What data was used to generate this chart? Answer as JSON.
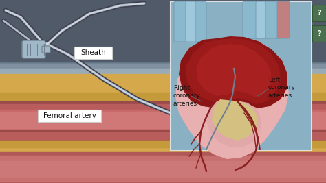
{
  "bg_gray_blue": "#6b7f8e",
  "bg_dark_blue_top": "#505d6b",
  "fat_yellow": "#d4a84b",
  "fat_yellow2": "#c49a3a",
  "artery_dark": "#9b4a4a",
  "artery_mid": "#b85c5c",
  "artery_light": "#cc7070",
  "artery_inner": "#c86868",
  "bottom_flesh": "#b05858",
  "bottom_flesh2": "#c87070",
  "bottom_strip": "#7a3535",
  "inset_bg": "#8ab0c4",
  "inset_border": "#e0e0e0",
  "heart_dark_red": "#8b1515",
  "heart_red": "#a01a1a",
  "heart_pink_light": "#e8b0b0",
  "heart_pink_body": "#dda0a0",
  "heart_yellow": "#d4c080",
  "vessel_blue": "#8ab8cc",
  "vessel_blue2": "#a0c8dc",
  "vessel_red": "#c84040",
  "artery_line": "#8b2020",
  "catheter_dark": "#404050",
  "catheter_light": "#c0c8d0",
  "sheath_body": "#a0b8c8",
  "sheath_dark": "#708090",
  "label_bg": "#ffffff",
  "label_text": "#111111",
  "label_border": "#cccccc",
  "line_color": "#888888",
  "icon_green": "#4a7a4a",
  "label_sheath": "Sheath",
  "label_femoral": "Femoral artery",
  "label_right": "Right\ncoronary\narteries",
  "label_left": "Left\ncoronary\narteries",
  "figsize": [
    4.74,
    2.67
  ],
  "dpi": 100
}
